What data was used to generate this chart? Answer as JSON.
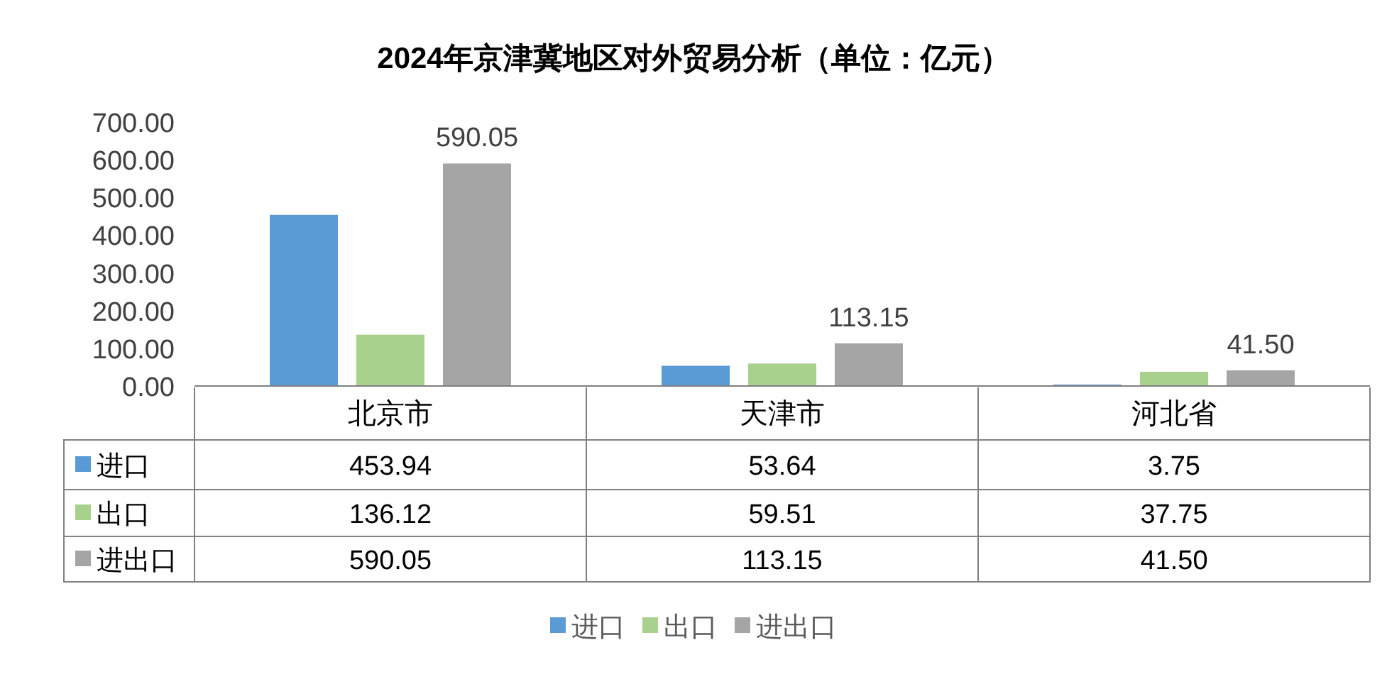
{
  "chart_data": {
    "type": "bar",
    "title": "2024年京津冀地区对外贸易分析（单位：亿元）",
    "categories": [
      "北京市",
      "天津市",
      "河北省"
    ],
    "series": [
      {
        "name": "进口",
        "color": "#5b9bd5",
        "values": [
          453.94,
          53.64,
          3.75
        ],
        "value_labels": [
          "453.94",
          "53.64",
          "3.75"
        ]
      },
      {
        "name": "出口",
        "color": "#a9d18e",
        "values": [
          136.12,
          59.51,
          37.75
        ],
        "value_labels": [
          "136.12",
          "59.51",
          "37.75"
        ]
      },
      {
        "name": "进出口",
        "color": "#a5a5a5",
        "values": [
          590.05,
          113.15,
          41.5
        ],
        "value_labels": [
          "590.05",
          "113.15",
          "41.50"
        ]
      }
    ],
    "annotations": [
      "590.05",
      "113.15",
      "41.50"
    ],
    "ylim": [
      0,
      700
    ],
    "yticks": [
      {
        "value": 0,
        "label": "0.00"
      },
      {
        "value": 100,
        "label": "100.00"
      },
      {
        "value": 200,
        "label": "200.00"
      },
      {
        "value": 300,
        "label": "300.00"
      },
      {
        "value": 400,
        "label": "400.00"
      },
      {
        "value": 500,
        "label": "500.00"
      },
      {
        "value": 600,
        "label": "600.00"
      },
      {
        "value": 700,
        "label": "700.00"
      }
    ],
    "legend": "bottom"
  }
}
